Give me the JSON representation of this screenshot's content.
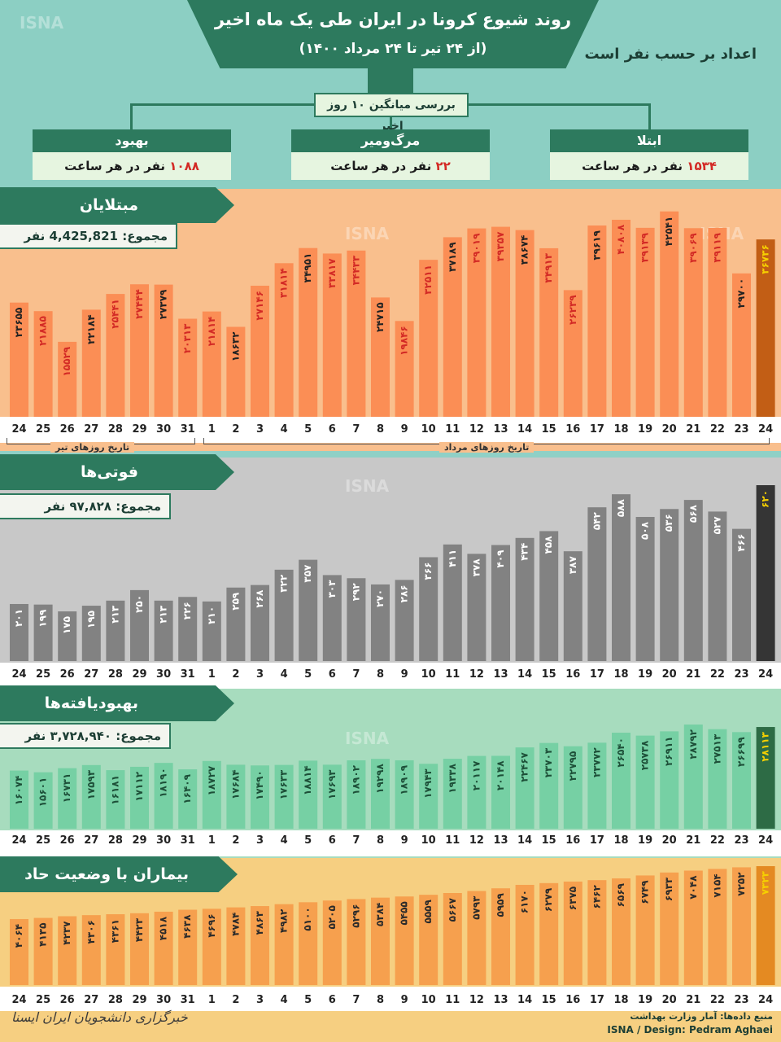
{
  "header": {
    "title": "روند شیوع کرونا در ایران طی یک ماه اخیر",
    "subtitle": "(از ۲۴ تیر تا ۲۴ مرداد ۱۴۰۰)",
    "units_note": "اعداد بر حسب نفر است",
    "avg_label": "بررسی میانگین ۱۰ روز اخیر"
  },
  "summary": [
    {
      "head": "ابتلا",
      "num": "۱۵۳۴",
      "rest": " نفر در هر ساعت"
    },
    {
      "head": "مرگ‌ومیر",
      "num": "۲۲",
      "rest": " نفر در هر ساعت"
    },
    {
      "head": "بهبود",
      "num": "۱۰۸۸",
      "rest": " نفر در هر ساعت"
    }
  ],
  "sections": {
    "cases": {
      "title": "مبتلایان",
      "total": "مجموع: 4,425,821 نفر"
    },
    "deaths": {
      "title": "فوتی‌ها",
      "total": "مجموع: ۹۷,۸۲۸ نفر"
    },
    "recovered": {
      "title": "بهبودیافته‌ها",
      "total": "مجموع: ۳,۷۲۸,۹۴۰ نفر"
    },
    "severe": {
      "title": "بیماران با وضعیت حاد"
    }
  },
  "month_labels": {
    "tir": "تاریخ روزهای تیر",
    "mordad": "تاریخ روزهای مرداد"
  },
  "footer": {
    "source": "منبع داده‌ها: آمار وزارت بهداشت",
    "credit": "ISNA / Design: Pedram Aghaei",
    "agency": "خبرگزاری دانشجویان ایران ایسنا",
    "watermark": "ISNA"
  },
  "colors": {
    "cases_bar": "#fb8e55",
    "cases_last": "#c25e15",
    "deaths_bar": "#828282",
    "deaths_last": "#353535",
    "recovered_bar": "#76d0a4",
    "recovered_last": "#2d6b45",
    "severe_bar": "#f6a04e",
    "severe_last": "#e48a22",
    "accent": "#2d7a5e",
    "highlight": "#d32a25"
  },
  "chart_data": [
    {
      "type": "bar",
      "title": "مبتلایان",
      "categories": [
        "24",
        "25",
        "26",
        "27",
        "28",
        "29",
        "30",
        "31",
        "1",
        "2",
        "3",
        "4",
        "5",
        "6",
        "7",
        "8",
        "9",
        "10",
        "11",
        "12",
        "13",
        "14",
        "15",
        "16",
        "17",
        "18",
        "19",
        "20",
        "21",
        "22",
        "23",
        "24"
      ],
      "values": [
        23655,
        21885,
        15529,
        22184,
        25441,
        27444,
        27379,
        20313,
        21814,
        18632,
        27146,
        31814,
        34951,
        33817,
        34433,
        24715,
        19846,
        32511,
        37189,
        39019,
        39357,
        38674,
        34913,
        26239,
        39619,
        40808,
        39139,
        42541,
        39069,
        39119,
        29700,
        36736
      ],
      "value_labels": [
        "۲۳۶۵۵",
        "۲۱۸۸۵",
        "۱۵۵۲۹",
        "۲۲۱۸۴",
        "۲۵۴۴۱",
        "۲۷۴۴۴",
        "۲۷۳۷۹",
        "۲۰۳۱۳",
        "۲۱۸۱۴",
        "۱۸۶۳۲",
        "۲۷۱۴۶",
        "۳۱۸۱۴",
        "۳۴۹۵۱",
        "۳۳۸۱۷",
        "۳۴۴۳۳",
        "۲۴۷۱۵",
        "۱۹۸۴۶",
        "۳۲۵۱۱",
        "۳۷۱۸۹",
        "۳۹۰۱۹",
        "۳۹۳۵۷",
        "۳۸۶۷۴",
        "۳۴۹۱۳",
        "۲۶۲۳۹",
        "۳۹۶۱۹",
        "۴۰۸۰۸",
        "۳۹۱۳۹",
        "۴۲۵۴۱",
        "۳۹۰۶۹",
        "۳۹۱۱۹",
        "۲۹۷۰۰",
        "۳۶۷۳۶"
      ],
      "ylim": [
        0,
        43500
      ]
    },
    {
      "type": "bar",
      "title": "فوتی‌ها",
      "categories": [
        "24",
        "25",
        "26",
        "27",
        "28",
        "29",
        "30",
        "31",
        "1",
        "2",
        "3",
        "4",
        "5",
        "6",
        "7",
        "8",
        "9",
        "10",
        "11",
        "12",
        "13",
        "14",
        "15",
        "16",
        "17",
        "18",
        "19",
        "20",
        "21",
        "22",
        "23",
        "24"
      ],
      "values": [
        201,
        199,
        175,
        195,
        213,
        250,
        213,
        226,
        210,
        259,
        268,
        322,
        357,
        303,
        292,
        270,
        286,
        366,
        411,
        378,
        409,
        434,
        458,
        387,
        542,
        588,
        508,
        536,
        568,
        527,
        466,
        620
      ],
      "value_labels": [
        "۲۰۱",
        "۱۹۹",
        "۱۷۵",
        "۱۹۵",
        "۲۱۳",
        "۲۵۰",
        "۲۱۳",
        "۲۲۶",
        "۲۱۰",
        "۲۵۹",
        "۲۶۸",
        "۳۲۲",
        "۳۵۷",
        "۳۰۳",
        "۲۹۲",
        "۲۷۰",
        "۲۸۶",
        "۳۶۶",
        "۴۱۱",
        "۳۷۸",
        "۴۰۹",
        "۴۳۴",
        "۴۵۸",
        "۳۸۷",
        "۵۴۲",
        "۵۸۸",
        "۵۰۸",
        "۵۳۶",
        "۵۶۸",
        "۵۲۷",
        "۴۶۶",
        "۶۲۰"
      ],
      "ylim": [
        0,
        620
      ]
    },
    {
      "type": "bar",
      "title": "بهبودیافته‌ها",
      "categories": [
        "24",
        "25",
        "26",
        "27",
        "28",
        "29",
        "30",
        "31",
        "1",
        "2",
        "3",
        "4",
        "5",
        "6",
        "7",
        "8",
        "9",
        "10",
        "11",
        "12",
        "13",
        "14",
        "15",
        "16",
        "17",
        "18",
        "19",
        "20",
        "21",
        "22",
        "23",
        "24"
      ],
      "values": [
        16074,
        15601,
        16731,
        17593,
        16181,
        17112,
        18190,
        16409,
        18727,
        17684,
        17490,
        17633,
        18814,
        17693,
        18902,
        19298,
        18909,
        17943,
        19338,
        20117,
        20148,
        22467,
        23703,
        22795,
        23772,
        26540,
        25738,
        26911,
        28792,
        27513,
        26699,
        28113
      ],
      "value_labels": [
        "۱۶۰۷۴",
        "۱۵۶۰۱",
        "۱۶۷۳۱",
        "۱۷۵۹۳",
        "۱۶۱۸۱",
        "۱۷۱۱۲",
        "۱۸۱۹۰",
        "۱۶۴۰۹",
        "۱۸۷۲۷",
        "۱۷۶۸۴",
        "۱۷۴۹۰",
        "۱۷۶۳۳",
        "۱۸۸۱۴",
        "۱۷۶۹۳",
        "۱۸۹۰۲",
        "۱۹۲۹۸",
        "۱۸۹۰۹",
        "۱۷۹۴۳",
        "۱۹۳۳۸",
        "۲۰۱۱۷",
        "۲۰۱۴۸",
        "۲۲۴۶۷",
        "۲۳۷۰۳",
        "۲۲۷۹۵",
        "۲۳۷۷۲",
        "۲۶۵۴۰",
        "۲۵۷۳۸",
        "۲۶۹۱۱",
        "۲۸۷۹۲",
        "۲۷۵۱۳",
        "۲۶۶۹۹",
        "۲۸۱۱۳"
      ],
      "ylim": [
        0,
        28800
      ]
    },
    {
      "type": "bar",
      "title": "بیماران با وضعیت حاد",
      "categories": [
        "24",
        "25",
        "26",
        "27",
        "28",
        "29",
        "30",
        "31",
        "1",
        "2",
        "3",
        "4",
        "5",
        "6",
        "7",
        "8",
        "9",
        "10",
        "11",
        "12",
        "13",
        "14",
        "15",
        "16",
        "17",
        "18",
        "19",
        "20",
        "21",
        "22",
        "23",
        "24"
      ],
      "values": [
        4064,
        4135,
        4237,
        4306,
        4361,
        4423,
        4518,
        4638,
        4696,
        4784,
        4863,
        4982,
        5100,
        5205,
        5296,
        5384,
        5455,
        5559,
        5667,
        5793,
        5959,
        6170,
        6279,
        6375,
        6462,
        6569,
        6749,
        6933,
        7048,
        7154,
        7252,
        7323
      ],
      "value_labels": [
        "۴۰۶۴",
        "۴۱۳۵",
        "۴۲۳۷",
        "۴۳۰۶",
        "۴۳۶۱",
        "۴۴۲۳",
        "۴۵۱۸",
        "۴۶۳۸",
        "۴۶۹۶",
        "۴۷۸۴",
        "۴۸۶۳",
        "۴۹۸۲",
        "۵۱۰۰",
        "۵۲۰۵",
        "۵۲۹۶",
        "۵۳۸۴",
        "۵۴۵۵",
        "۵۵۵۹",
        "۵۶۶۷",
        "۵۷۹۳",
        "۵۹۵۹",
        "۶۱۷۰",
        "۶۲۷۹",
        "۶۳۷۵",
        "۶۴۶۲",
        "۶۵۶۹",
        "۶۷۴۹",
        "۶۹۳۳",
        "۷۰۴۸",
        "۷۱۵۴",
        "۷۲۵۲",
        "۷۳۲۳"
      ],
      "ylim": [
        0,
        7323
      ]
    }
  ]
}
